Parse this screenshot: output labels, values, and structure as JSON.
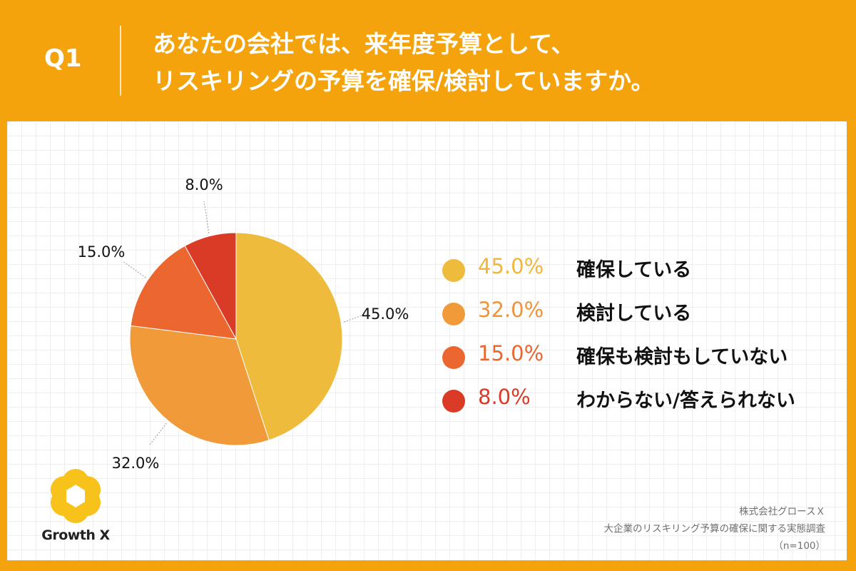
{
  "header": {
    "question_label": "Q1",
    "title_lines": [
      "あなたの会社では、来年度予算として、",
      "リスキリングの予算を確保/検討していますか。"
    ]
  },
  "colors": {
    "background": "#f5a30c",
    "panel": "#ffffff"
  },
  "chart_data": {
    "type": "pie",
    "start": "12 o'clock",
    "direction": "clockwise",
    "slices": [
      {
        "label": "確保している",
        "value": 45.0,
        "display": "45.0%",
        "color": "#efbb3d",
        "legend_text_color": "#f0b73a"
      },
      {
        "label": "検討している",
        "value": 32.0,
        "display": "32.0%",
        "color": "#f19a3a",
        "legend_text_color": "#ef943a"
      },
      {
        "label": "確保も検討もしていない",
        "value": 15.0,
        "display": "15.0%",
        "color": "#ec6630",
        "legend_text_color": "#ea6630"
      },
      {
        "label": "わからない/答えられない",
        "value": 8.0,
        "display": "8.0%",
        "color": "#d93b26",
        "legend_text_color": "#d93b26"
      }
    ],
    "legend_position": "right"
  },
  "logo": {
    "text": "Growth X",
    "color": "#f7c21a"
  },
  "source": {
    "lines": [
      "株式会社グロースＸ",
      "大企業のリスキリング予算の確保に関する実態調査",
      "（n=100）"
    ]
  }
}
